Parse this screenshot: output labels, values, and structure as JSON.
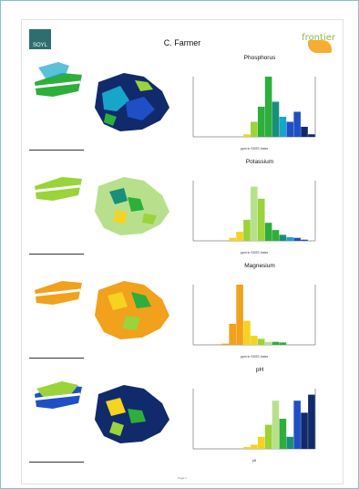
{
  "header": {
    "title": "C. Farmer",
    "logo_left": "SOYL",
    "logo_right": "frontier"
  },
  "colors": {
    "blue": "#1f4fc4",
    "navy": "#102a6b",
    "cyan": "#17a5c9",
    "teal": "#17907a",
    "green": "#2eae3b",
    "lime": "#9ad33a",
    "yellow": "#f6d221",
    "orange": "#f2a11c",
    "pale_green": "#b8e08c"
  },
  "sections": [
    {
      "name": "Phosphorus",
      "chart_data": {
        "type": "bar",
        "title": "Phosphorus",
        "values": [
          0,
          0,
          0,
          0,
          0,
          0,
          0,
          0.5,
          3,
          6,
          12,
          7,
          4,
          3,
          5,
          2,
          0.5
        ],
        "colors": [
          "#f6d221",
          "#f6d221",
          "#f6d221",
          "#f6d221",
          "#f2a11c",
          "#f2a11c",
          "#f6d221",
          "#f6d221",
          "#9ad33a",
          "#2eae3b",
          "#2eae3b",
          "#17907a",
          "#17a5c9",
          "#1f4fc4",
          "#1f4fc4",
          "#102a6b",
          "#102a6b"
        ],
        "ylim": [
          0,
          12
        ],
        "xlabel": "ppm in SSSS Index"
      }
    },
    {
      "name": "Potassium",
      "chart_data": {
        "type": "bar",
        "title": "Potassium",
        "values": [
          0,
          0,
          0,
          0,
          0,
          0.5,
          1.5,
          3.5,
          9,
          7,
          3,
          1.8,
          1,
          0.6,
          0.5,
          0.2,
          0
        ],
        "colors": [
          "#f2a11c",
          "#f2a11c",
          "#f6d221",
          "#f6d221",
          "#f6d221",
          "#f6d221",
          "#f6d221",
          "#9ad33a",
          "#b8e08c",
          "#9ad33a",
          "#2eae3b",
          "#2eae3b",
          "#17907a",
          "#17a5c9",
          "#1f4fc4",
          "#1f4fc4",
          "#102a6b"
        ],
        "ylim": [
          0,
          10
        ],
        "xlabel": "ppm in SSSS Index"
      }
    },
    {
      "name": "Magnesium",
      "chart_data": {
        "type": "bar",
        "title": "Magnesium",
        "values": [
          0,
          0,
          0,
          0.1,
          0.2,
          3.5,
          10,
          4,
          1.5,
          1,
          0.5,
          0.5,
          0.4,
          0,
          0,
          0,
          0
        ],
        "colors": [
          "#f2a11c",
          "#f2a11c",
          "#f2a11c",
          "#f2a11c",
          "#f2a11c",
          "#f2a11c",
          "#f2a11c",
          "#f6d221",
          "#f6d221",
          "#9ad33a",
          "#b8e08c",
          "#2eae3b",
          "#2eae3b",
          "#17907a",
          "#17a5c9",
          "#1f4fc4",
          "#102a6b"
        ],
        "ylim": [
          0,
          10
        ],
        "xlabel": "ppm in SSSS Index"
      }
    },
    {
      "name": "pH",
      "chart_data": {
        "type": "bar",
        "title": "pH",
        "values": [
          0,
          0,
          0,
          0,
          0,
          0,
          0,
          0.3,
          0.7,
          2,
          4,
          8,
          5,
          2,
          8,
          6,
          9
        ],
        "colors": [
          "#f2a11c",
          "#f2a11c",
          "#f2a11c",
          "#f2a11c",
          "#f2a11c",
          "#f2a11c",
          "#f2a11c",
          "#f6d221",
          "#f6d221",
          "#f6d221",
          "#9ad33a",
          "#b8e08c",
          "#2eae3b",
          "#17907a",
          "#1f4fc4",
          "#102a6b",
          "#102a6b"
        ],
        "ylim": [
          0,
          10
        ],
        "xlabel": "pH"
      }
    }
  ],
  "footer": {
    "center": "Page 1"
  }
}
